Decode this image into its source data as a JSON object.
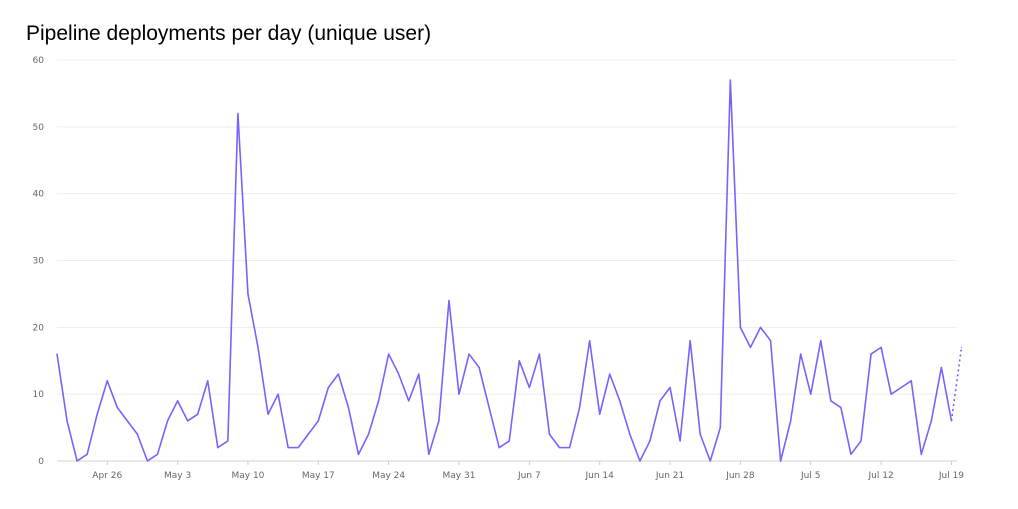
{
  "chart_data": {
    "type": "line",
    "title": "Pipeline deployments per day (unique user)",
    "xlabel": "",
    "ylabel": "",
    "ylim": [
      0,
      60
    ],
    "yticks": [
      "0",
      "10",
      "20",
      "30",
      "40",
      "50",
      "60"
    ],
    "xticks": [
      "Apr 26",
      "May 3",
      "May 10",
      "May 17",
      "May 24",
      "May 31",
      "Jun 7",
      "Jun 14",
      "Jun 21",
      "Jun 28",
      "Jul 5",
      "Jul 12",
      "Jul 19"
    ],
    "grid": true,
    "line_color": "#7B61FF",
    "series": [
      {
        "x_start": "Apr 21",
        "values": [
          16,
          6,
          0,
          1,
          7,
          12,
          8,
          6,
          4,
          0,
          1,
          6,
          9,
          6,
          7,
          12,
          2,
          3,
          52,
          25,
          17,
          7,
          10,
          2,
          2,
          4,
          6,
          11,
          13,
          8,
          1,
          4,
          9,
          16,
          13,
          9,
          13,
          1,
          6,
          24,
          10,
          16,
          14,
          8,
          2,
          3,
          15,
          11,
          16,
          4,
          2,
          2,
          8,
          18,
          7,
          13,
          9,
          4,
          0,
          3,
          9,
          11,
          3,
          18,
          4,
          0,
          5,
          57,
          20,
          17,
          20,
          18,
          0,
          6,
          16,
          10,
          18,
          9,
          8,
          1,
          3,
          16,
          17,
          10,
          11,
          12,
          1,
          6,
          14,
          6,
          17
        ],
        "partial_from_index": 89
      }
    ]
  }
}
